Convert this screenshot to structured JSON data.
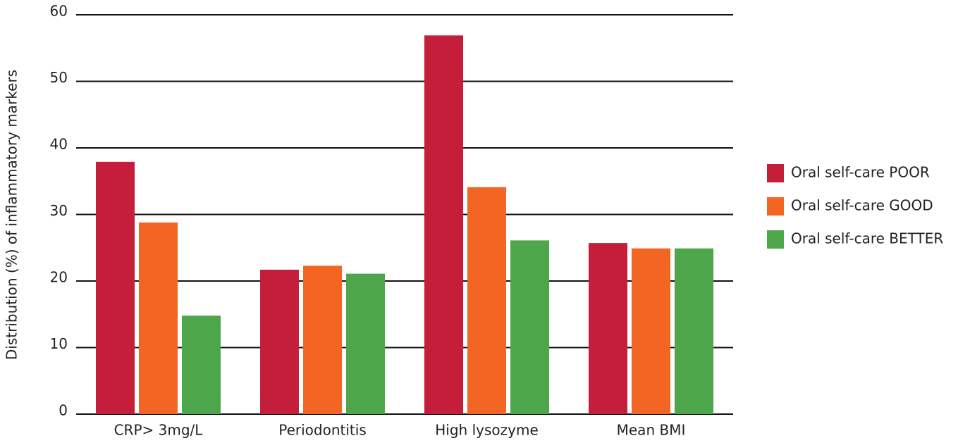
{
  "chart_data": {
    "type": "bar",
    "y_label": "Distribution (%) of inflammatory markers",
    "categories": [
      "CRP> 3mg/L",
      "Periodontitis",
      "High lysozyme",
      "Mean BMI"
    ],
    "series": [
      {
        "name": "Oral self-care POOR",
        "color": "#c41e3a",
        "values": [
          37.9,
          21.7,
          56.9,
          25.7
        ]
      },
      {
        "name": "Oral self-care GOOD",
        "color": "#f26522",
        "values": [
          28.8,
          22.3,
          34.1,
          24.9
        ]
      },
      {
        "name": "Oral self-care BETTER",
        "color": "#4ea64a",
        "values": [
          14.8,
          21.1,
          26.1,
          24.9
        ]
      }
    ],
    "ylim": [
      0,
      60
    ],
    "yticks": [
      0,
      10,
      20,
      30,
      40,
      50,
      60
    ],
    "grid": true,
    "legend": "right"
  }
}
